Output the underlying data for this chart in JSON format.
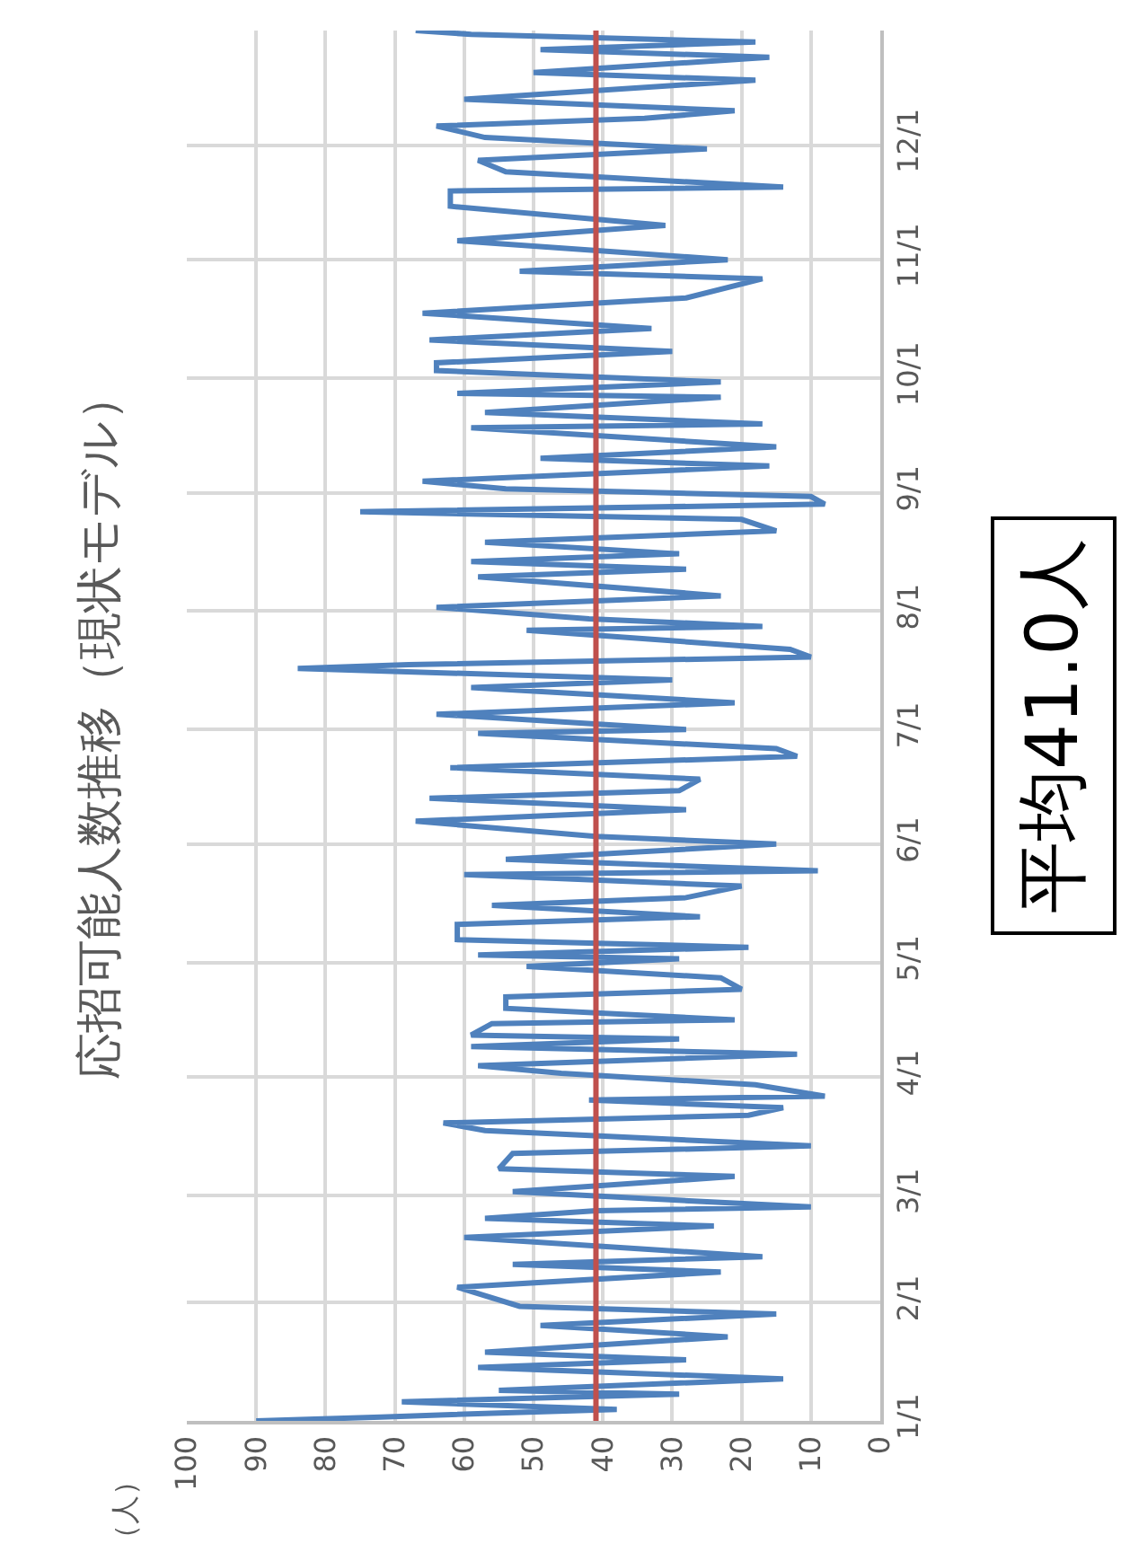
{
  "chart_data": {
    "type": "line",
    "orientation": "horizontal",
    "title": "応招可能人数推移（現状モデル）",
    "annotations": [
      "平均41.0人",
      "（人）"
    ],
    "x": [
      "--01-01",
      "--01-02",
      "--01-03",
      "--01-04",
      "--01-06",
      "--01-08",
      "--01-09",
      "--01-12",
      "--01-15",
      "--01-17",
      "--01-19",
      "--01-23",
      "--01-26",
      "--01-29",
      "--01-31",
      "--02-05",
      "--02-09",
      "--02-11",
      "--02-13",
      "--02-18",
      "--02-21",
      "--02-23",
      "--02-25",
      "--02-26",
      "--03-02",
      "--03-06",
      "--03-08",
      "--03-12",
      "--03-14",
      "--03-18",
      "--03-20",
      "--03-22",
      "--03-24",
      "--03-26",
      "--03-27",
      "--03-30",
      "--04-02",
      "--04-04",
      "--04-07",
      "--04-09",
      "--04-11",
      "--04-12",
      "--04-15",
      "--04-16",
      "--04-19",
      "--04-22",
      "--04-24",
      "--04-27",
      "--04-30",
      "--05-02",
      "--05-03",
      "--05-05",
      "--05-07",
      "--05-11",
      "--05-13",
      "--05-16",
      "--05-18",
      "--05-21",
      "--05-24",
      "--05-25",
      "--05-28",
      "--06-01",
      "--06-03",
      "--06-07",
      "--06-10",
      "--06-13",
      "--06-15",
      "--06-18",
      "--06-21",
      "--06-24",
      "--06-26",
      "--06-30",
      "--07-01",
      "--07-05",
      "--07-08",
      "--07-12",
      "--07-14",
      "--07-17",
      "--07-18",
      "--07-20",
      "--07-22",
      "--07-27",
      "--07-28",
      "--07-30",
      "--08-02",
      "--08-05",
      "--08-10",
      "--08-12",
      "--08-14",
      "--08-16",
      "--08-19",
      "--08-22",
      "--08-25",
      "--08-27",
      "--08-29",
      "--08-31",
      "--09-02",
      "--09-04",
      "--09-08",
      "--09-10",
      "--09-13",
      "--09-18",
      "--09-19",
      "--09-22",
      "--09-26",
      "--09-27",
      "--09-30",
      "--10-03",
      "--10-05",
      "--10-08",
      "--10-11",
      "--10-14",
      "--10-18",
      "--10-22",
      "--10-27",
      "--10-29",
      "--11-01",
      "--11-06",
      "--11-10",
      "--11-15",
      "--11-19",
      "--11-20",
      "--11-24",
      "--11-27",
      "--11-30",
      "--12-03",
      "--12-06",
      "--12-08",
      "--12-10",
      "--12-13",
      "--12-18",
      "--12-20",
      "--12-24",
      "--12-26",
      "--12-28",
      "--12-30",
      "--12-31"
    ],
    "series": [
      {
        "color": "#4f81bd",
        "values": [
          90,
          72,
          56,
          38,
          69,
          29,
          55,
          14,
          58,
          28,
          57,
          22,
          49,
          15,
          52,
          61,
          23,
          53,
          17,
          60,
          24,
          57,
          41,
          10,
          53,
          21,
          55,
          53,
          10,
          57,
          63,
          19,
          14,
          42,
          8,
          18,
          46,
          58,
          12,
          59,
          29,
          59,
          56,
          21,
          54,
          54,
          20,
          23,
          51,
          29,
          58,
          19,
          61,
          61,
          26,
          56,
          28,
          20,
          60,
          9,
          54,
          15,
          41,
          67,
          28,
          65,
          29,
          26,
          62,
          12,
          15,
          58,
          28,
          64,
          21,
          59,
          30,
          84,
          68,
          10,
          13,
          51,
          17,
          42,
          64,
          23,
          58,
          28,
          59,
          29,
          57,
          15,
          20,
          75,
          8,
          10,
          54,
          66,
          16,
          49,
          15,
          59,
          17,
          57,
          23,
          61,
          23,
          64,
          64,
          30,
          65,
          33,
          66,
          28,
          17,
          52,
          22,
          61,
          31,
          62,
          62,
          14,
          54,
          58,
          25,
          57,
          64,
          34,
          21,
          60,
          18,
          50,
          16,
          49,
          18,
          59,
          67
        ]
      }
    ],
    "ref_lines": [
      {
        "axis": "x",
        "value": 41.0,
        "color": "#c0504d"
      }
    ],
    "ylim": [
      "--01-01",
      "--12-31"
    ],
    "yticks": [
      {
        "value": "--01-01",
        "label": "1/1"
      },
      {
        "value": "--02-01",
        "label": "2/1"
      },
      {
        "value": "--03-01",
        "label": "3/1"
      },
      {
        "value": "--04-01",
        "label": "4/1"
      },
      {
        "value": "--05-01",
        "label": "5/1"
      },
      {
        "value": "--06-01",
        "label": "6/1"
      },
      {
        "value": "--07-01",
        "label": "7/1"
      },
      {
        "value": "--08-01",
        "label": "8/1"
      },
      {
        "value": "--09-01",
        "label": "9/1"
      },
      {
        "value": "--10-01",
        "label": "10/1"
      },
      {
        "value": "--11-01",
        "label": "11/1"
      },
      {
        "value": "--12-01",
        "label": "12/1"
      }
    ],
    "xlim": [
      100,
      0
    ],
    "xticks": [
      100,
      90,
      80,
      70,
      60,
      50,
      40,
      30,
      20,
      10,
      0
    ],
    "grid": true,
    "line_style": "solid"
  }
}
